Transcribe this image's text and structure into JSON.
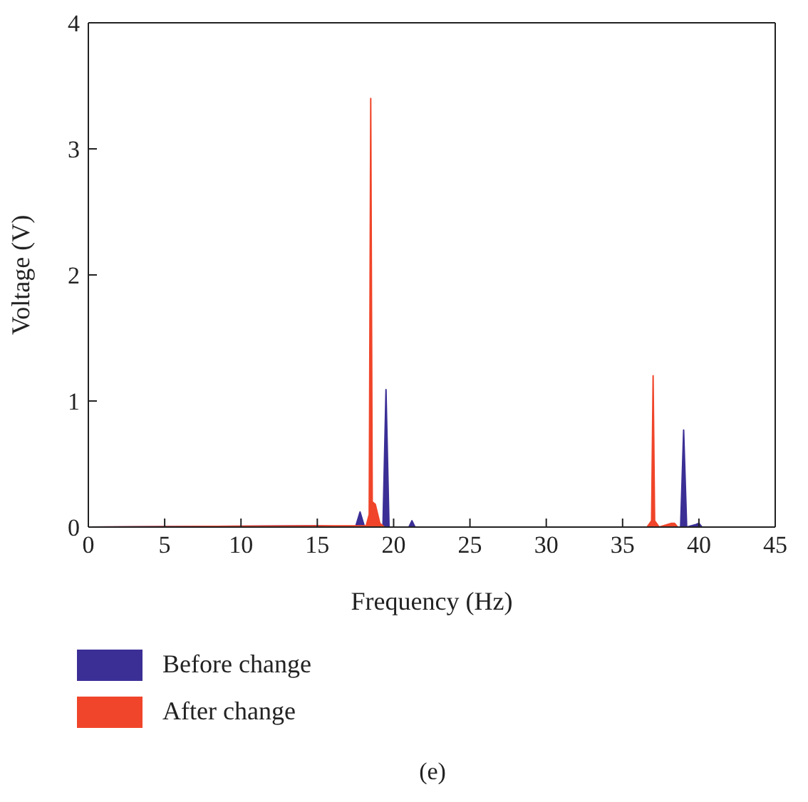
{
  "chart_data": {
    "type": "area",
    "xlabel": "Frequency (Hz)",
    "ylabel": "Voltage (V)",
    "annotations": [
      "(e)"
    ],
    "xlim": [
      0,
      45
    ],
    "xticks": [
      0,
      5,
      10,
      15,
      20,
      25,
      30,
      35,
      40,
      45
    ],
    "ylim": [
      0,
      4
    ],
    "yticks": [
      0,
      1,
      2,
      3,
      4
    ],
    "grid": false,
    "legend": "bottom",
    "series": [
      {
        "name": "Before change",
        "color": "#3b2f96",
        "x": [
          0,
          15,
          17.5,
          17.8,
          18.1,
          19.3,
          19.5,
          19.7,
          21.0,
          21.2,
          21.4,
          35,
          38.8,
          39,
          39.2,
          39.8,
          40,
          40.2,
          45
        ],
        "values": [
          0,
          0.01,
          0,
          0.12,
          0,
          0,
          1.09,
          0,
          0,
          0.05,
          0,
          0,
          0,
          0.77,
          0,
          0.02,
          0.03,
          0,
          0
        ]
      },
      {
        "name": "After change",
        "color": "#f0452a",
        "x": [
          0,
          15,
          18.2,
          18.4,
          18.5,
          18.6,
          18.8,
          19.1,
          19.4,
          36.6,
          36.9,
          37,
          37.1,
          37.4,
          38.2,
          38.4,
          38.6,
          45
        ],
        "values": [
          0,
          0.01,
          0.01,
          0.1,
          3.4,
          0.2,
          0.18,
          0.03,
          0,
          0,
          0.05,
          1.2,
          0.05,
          0,
          0.03,
          0.03,
          0,
          0
        ]
      }
    ]
  }
}
